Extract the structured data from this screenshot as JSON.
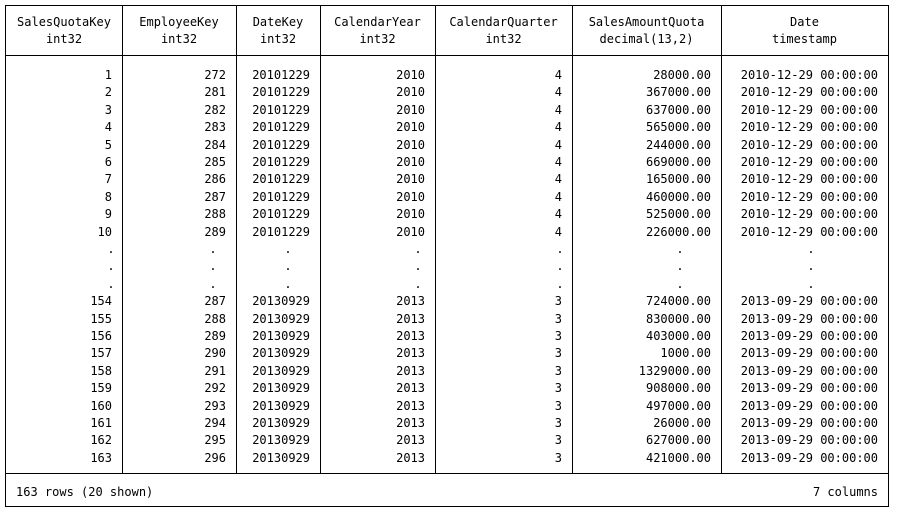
{
  "columns": [
    {
      "name": "SalesQuotaKey",
      "dtype": "int32"
    },
    {
      "name": "EmployeeKey",
      "dtype": "int32"
    },
    {
      "name": "DateKey",
      "dtype": "int32"
    },
    {
      "name": "CalendarYear",
      "dtype": "int32"
    },
    {
      "name": "CalendarQuarter",
      "dtype": "int32"
    },
    {
      "name": "SalesAmountQuota",
      "dtype": "decimal(13,2)"
    },
    {
      "name": "Date",
      "dtype": "timestamp"
    }
  ],
  "head_rows": [
    [
      "1",
      "272",
      "20101229",
      "2010",
      "4",
      "28000.00",
      "2010-12-29 00:00:00"
    ],
    [
      "2",
      "281",
      "20101229",
      "2010",
      "4",
      "367000.00",
      "2010-12-29 00:00:00"
    ],
    [
      "3",
      "282",
      "20101229",
      "2010",
      "4",
      "637000.00",
      "2010-12-29 00:00:00"
    ],
    [
      "4",
      "283",
      "20101229",
      "2010",
      "4",
      "565000.00",
      "2010-12-29 00:00:00"
    ],
    [
      "5",
      "284",
      "20101229",
      "2010",
      "4",
      "244000.00",
      "2010-12-29 00:00:00"
    ],
    [
      "6",
      "285",
      "20101229",
      "2010",
      "4",
      "669000.00",
      "2010-12-29 00:00:00"
    ],
    [
      "7",
      "286",
      "20101229",
      "2010",
      "4",
      "165000.00",
      "2010-12-29 00:00:00"
    ],
    [
      "8",
      "287",
      "20101229",
      "2010",
      "4",
      "460000.00",
      "2010-12-29 00:00:00"
    ],
    [
      "9",
      "288",
      "20101229",
      "2010",
      "4",
      "525000.00",
      "2010-12-29 00:00:00"
    ],
    [
      "10",
      "289",
      "20101229",
      "2010",
      "4",
      "226000.00",
      "2010-12-29 00:00:00"
    ]
  ],
  "ellipsis_rows": [
    [
      ".",
      ".",
      ".",
      ".",
      ".",
      ".",
      "."
    ],
    [
      ".",
      ".",
      ".",
      ".",
      ".",
      ".",
      "."
    ],
    [
      ".",
      ".",
      ".",
      ".",
      ".",
      ".",
      "."
    ]
  ],
  "tail_rows": [
    [
      "154",
      "287",
      "20130929",
      "2013",
      "3",
      "724000.00",
      "2013-09-29 00:00:00"
    ],
    [
      "155",
      "288",
      "20130929",
      "2013",
      "3",
      "830000.00",
      "2013-09-29 00:00:00"
    ],
    [
      "156",
      "289",
      "20130929",
      "2013",
      "3",
      "403000.00",
      "2013-09-29 00:00:00"
    ],
    [
      "157",
      "290",
      "20130929",
      "2013",
      "3",
      "1000.00",
      "2013-09-29 00:00:00"
    ],
    [
      "158",
      "291",
      "20130929",
      "2013",
      "3",
      "1329000.00",
      "2013-09-29 00:00:00"
    ],
    [
      "159",
      "292",
      "20130929",
      "2013",
      "3",
      "908000.00",
      "2013-09-29 00:00:00"
    ],
    [
      "160",
      "293",
      "20130929",
      "2013",
      "3",
      "497000.00",
      "2013-09-29 00:00:00"
    ],
    [
      "161",
      "294",
      "20130929",
      "2013",
      "3",
      "26000.00",
      "2013-09-29 00:00:00"
    ],
    [
      "162",
      "295",
      "20130929",
      "2013",
      "3",
      "627000.00",
      "2013-09-29 00:00:00"
    ],
    [
      "163",
      "296",
      "20130929",
      "2013",
      "3",
      "421000.00",
      "2013-09-29 00:00:00"
    ]
  ],
  "footer": {
    "rows_summary": "163 rows (20 shown)",
    "columns_summary": "7 columns"
  }
}
